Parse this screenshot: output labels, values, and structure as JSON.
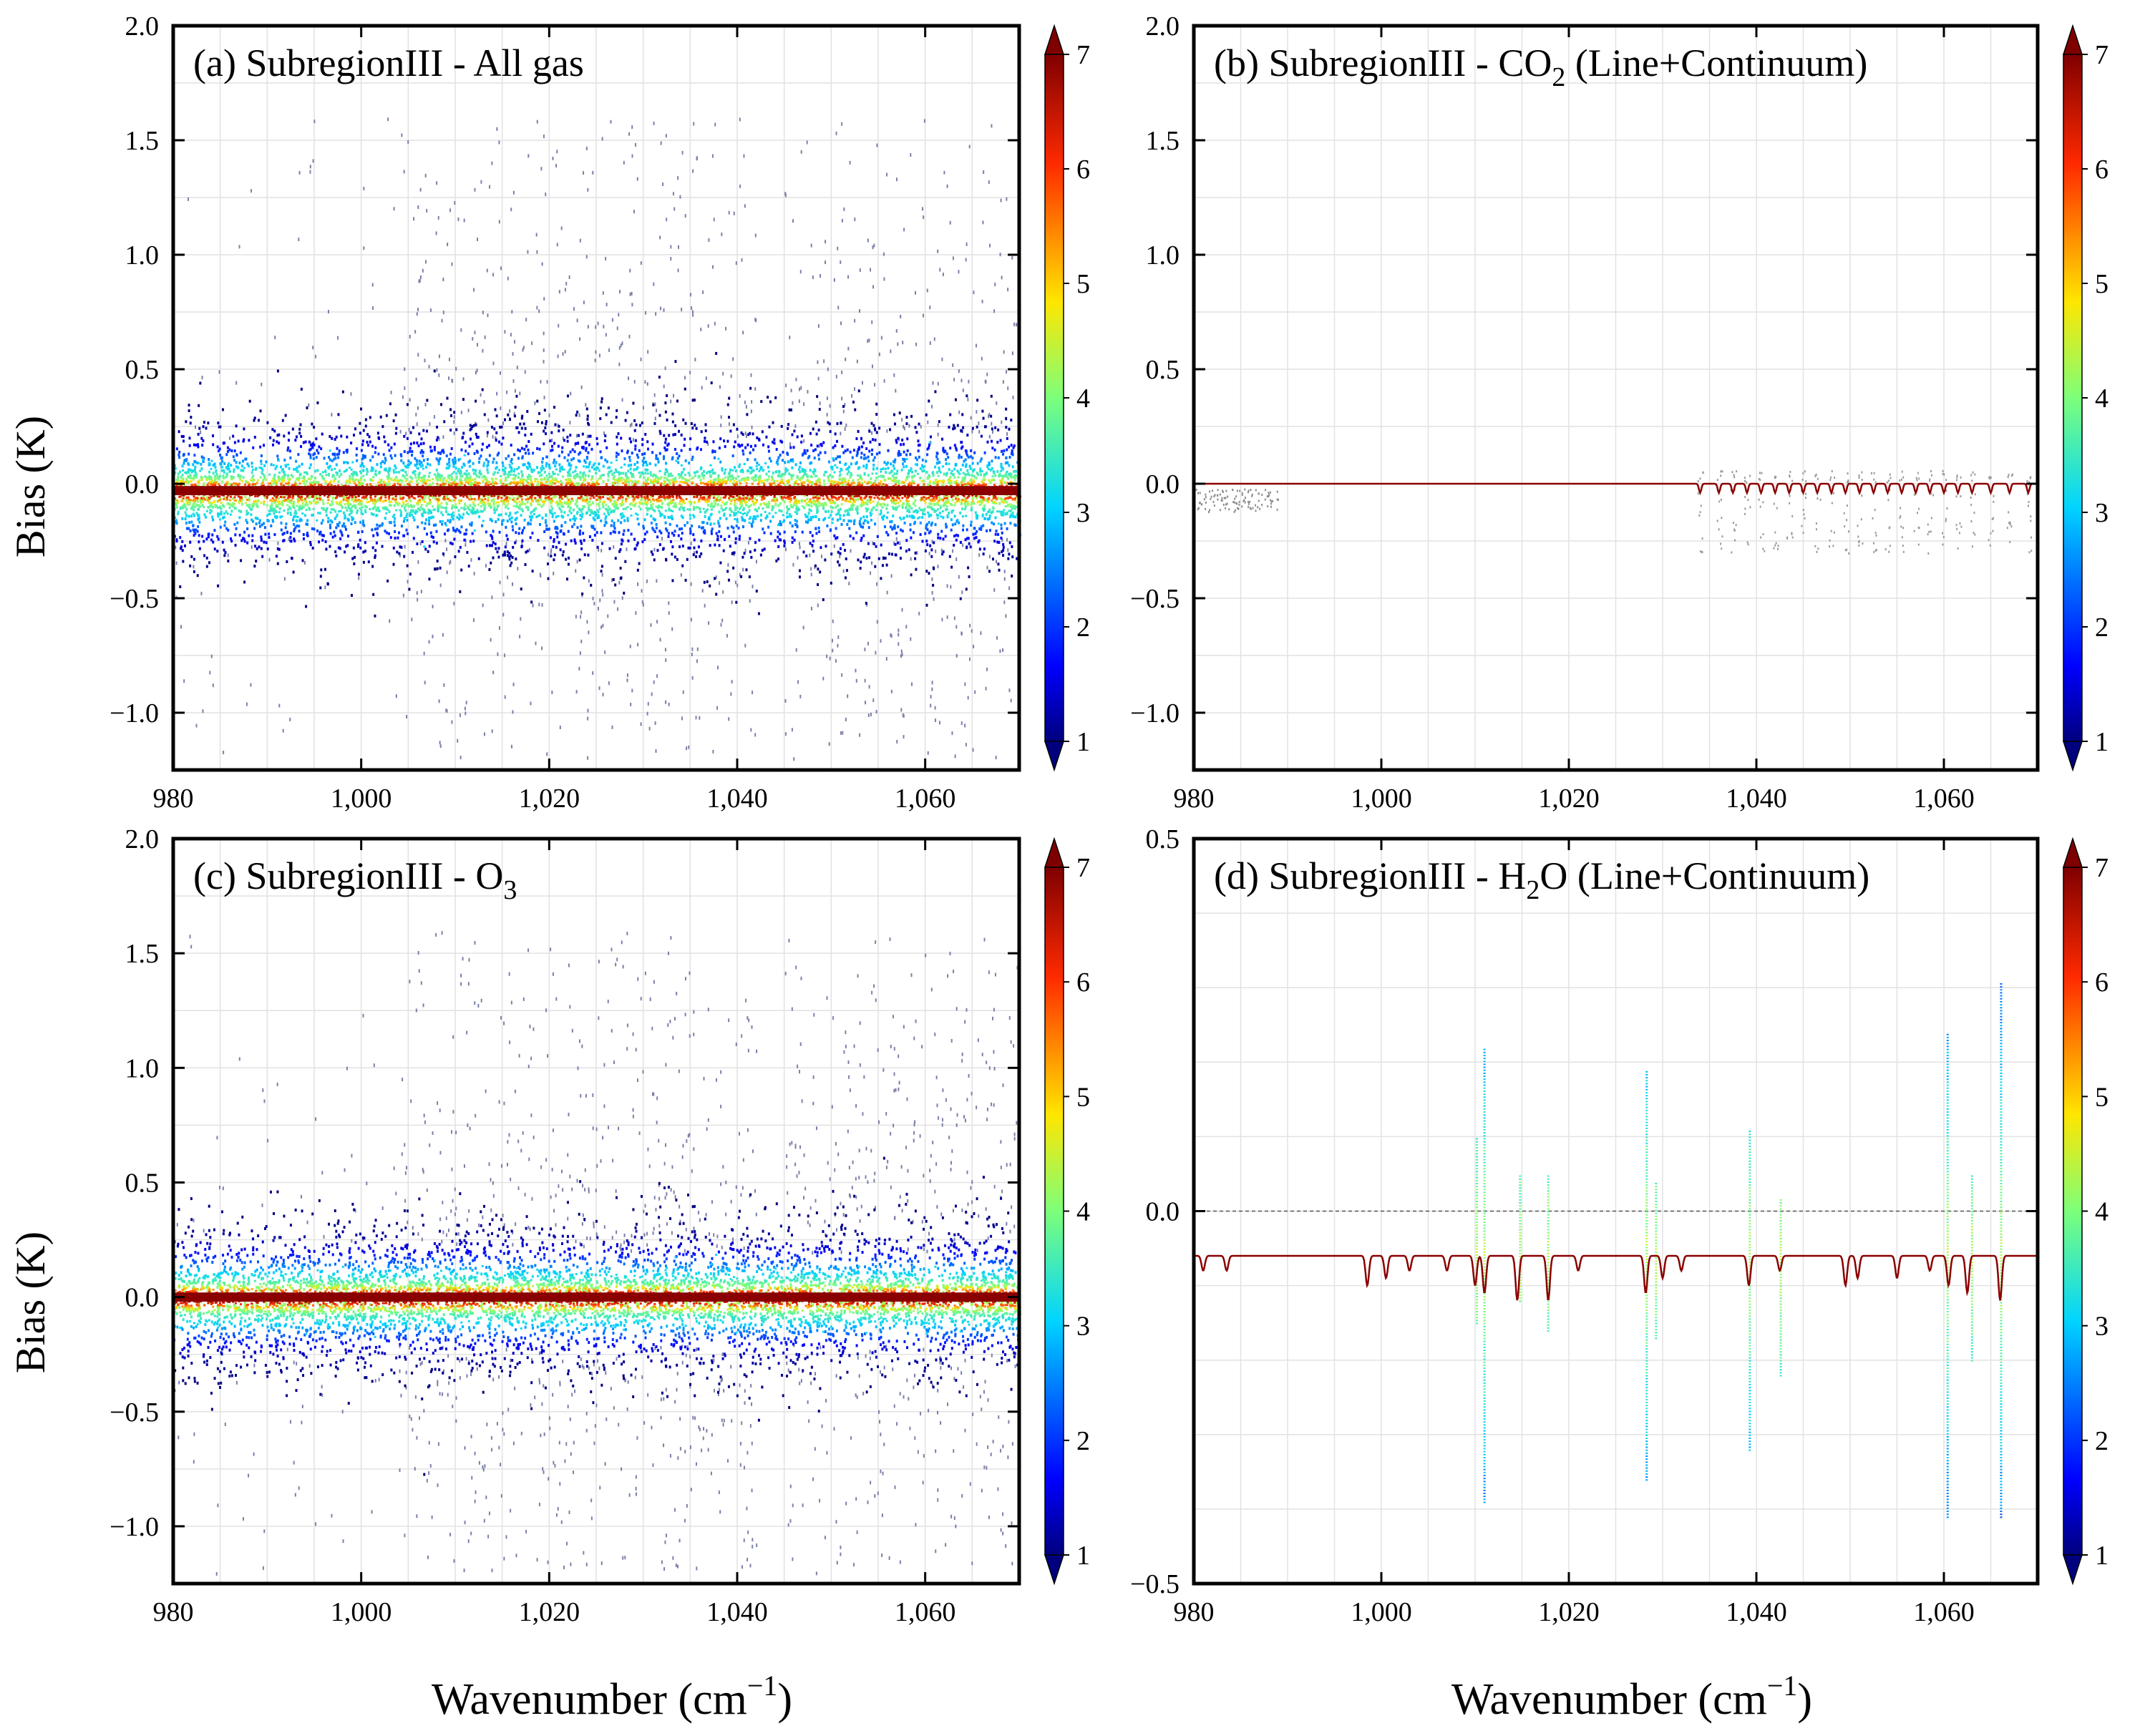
{
  "figure": {
    "x_axis_label": "Wavenumber (cm",
    "x_axis_label_sup": "−1",
    "x_axis_label_close": ")",
    "y_axis_label": "Bias (K)"
  },
  "chart_data": [
    {
      "id": "a",
      "type": "scatter",
      "title": "(a) SubregionIII - All gas",
      "title_parts": [
        {
          "t": "(a) SubregionIII - All gas"
        }
      ],
      "xlabel": "",
      "ylabel": "Bias (K)",
      "xlim": [
        980,
        1070
      ],
      "ylim": [
        -1.25,
        2.0
      ],
      "xticks": [
        980,
        1000,
        1020,
        1040,
        1060
      ],
      "xtick_labels": [
        "980",
        "1,000",
        "1,020",
        "1,040",
        "1,060"
      ],
      "yticks": [
        -1.0,
        -0.5,
        0.0,
        0.5,
        1.0,
        1.5,
        2.0
      ],
      "ytick_labels": [
        "−1.0",
        "−0.5",
        "0.0",
        "0.5",
        "1.0",
        "1.5",
        "2.0"
      ],
      "grid": true,
      "colorbar": {
        "min": 1,
        "max": 7,
        "ticks": [
          "1",
          "2",
          "3",
          "4",
          "5",
          "6",
          "7"
        ],
        "extend": "both",
        "colormap": "jet"
      },
      "pattern": "broad",
      "center_bias": -0.03,
      "core_spread": 0.05,
      "halo_spread": 0.16,
      "sparse_range": [
        -1.2,
        1.6
      ],
      "gap_x": [
        1042,
        1045
      ]
    },
    {
      "id": "b",
      "type": "scatter",
      "title": "(b) SubregionIII - CO2 (Line+Continuum)",
      "title_parts": [
        {
          "t": "(b) SubregionIII - CO"
        },
        {
          "t": "2",
          "sub": true
        },
        {
          "t": " (Line+Continuum)"
        }
      ],
      "xlabel": "",
      "ylabel": "",
      "xlim": [
        980,
        1070
      ],
      "ylim": [
        -1.25,
        2.0
      ],
      "xticks": [
        980,
        1000,
        1020,
        1040,
        1060
      ],
      "xtick_labels": [
        "980",
        "1,000",
        "1,020",
        "1,040",
        "1,060"
      ],
      "yticks": [
        -1.0,
        -0.5,
        0.0,
        0.5,
        1.0,
        1.5,
        2.0
      ],
      "ytick_labels": [
        "−1.0",
        "−0.5",
        "0.0",
        "0.5",
        "1.0",
        "1.5",
        "2.0"
      ],
      "grid": true,
      "colorbar": {
        "min": 1,
        "max": 7,
        "ticks": [
          "1",
          "2",
          "3",
          "4",
          "5",
          "6",
          "7"
        ],
        "extend": "both",
        "colormap": "jet"
      },
      "pattern": "lines",
      "baseline": 0.0,
      "line_centers": [
        1034,
        1036,
        1037.5,
        1039,
        1040.5,
        1042,
        1043.5,
        1045,
        1046.5,
        1048,
        1049.5,
        1051,
        1052.5,
        1054,
        1055.5,
        1057,
        1058.5,
        1060,
        1061.5,
        1063,
        1065,
        1067,
        1069
      ],
      "line_depth": -0.04,
      "scatter_spread": 0.3
    },
    {
      "id": "c",
      "type": "scatter",
      "title": "(c) SubregionIII - O3",
      "title_parts": [
        {
          "t": "(c) SubregionIII - O"
        },
        {
          "t": "3",
          "sub": true
        }
      ],
      "xlabel": "",
      "ylabel": "Bias (K)",
      "xlim": [
        980,
        1070
      ],
      "ylim": [
        -1.25,
        2.0
      ],
      "xticks": [
        980,
        1000,
        1020,
        1040,
        1060
      ],
      "xtick_labels": [
        "980",
        "1,000",
        "1,020",
        "1,040",
        "1,060"
      ],
      "yticks": [
        -1.0,
        -0.5,
        0.0,
        0.5,
        1.0,
        1.5,
        2.0
      ],
      "ytick_labels": [
        "−1.0",
        "−0.5",
        "0.0",
        "0.5",
        "1.0",
        "1.5",
        "2.0"
      ],
      "grid": true,
      "colorbar": {
        "min": 1,
        "max": 7,
        "ticks": [
          "1",
          "2",
          "3",
          "4",
          "5",
          "6",
          "7"
        ],
        "extend": "both",
        "colormap": "jet"
      },
      "pattern": "broad",
      "center_bias": 0.0,
      "core_spread": 0.05,
      "halo_spread": 0.16,
      "sparse_range": [
        -1.2,
        1.6
      ],
      "gap_x": [
        1042,
        1045
      ]
    },
    {
      "id": "d",
      "type": "scatter",
      "title": "(d) SubregionIII - H2O (Line+Continuum)",
      "title_parts": [
        {
          "t": "(d) SubregionIII - H"
        },
        {
          "t": "2",
          "sub": true
        },
        {
          "t": "O (Line+Continuum)"
        }
      ],
      "xlabel": "",
      "ylabel": "",
      "xlim": [
        980,
        1070
      ],
      "ylim": [
        -0.5,
        0.5
      ],
      "xticks": [
        980,
        1000,
        1020,
        1040,
        1060
      ],
      "xtick_labels": [
        "980",
        "1,000",
        "1,020",
        "1,040",
        "1,060"
      ],
      "yticks": [
        -0.5,
        0.0,
        0.5
      ],
      "ytick_labels": [
        "−0.5",
        "0.0",
        "0.5"
      ],
      "grid": true,
      "colorbar": {
        "min": 1,
        "max": 7,
        "ticks": [
          "1",
          "2",
          "3",
          "4",
          "5",
          "6",
          "7"
        ],
        "extend": "both",
        "colormap": "jet"
      },
      "pattern": "h2o",
      "baseline": -0.06,
      "dips": [
        {
          "x": 981,
          "d": -0.02
        },
        {
          "x": 983.5,
          "d": -0.02
        },
        {
          "x": 998.5,
          "d": -0.04
        },
        {
          "x": 1000.5,
          "d": -0.03
        },
        {
          "x": 1003,
          "d": -0.02
        },
        {
          "x": 1007,
          "d": -0.02
        },
        {
          "x": 1010,
          "d": -0.04
        },
        {
          "x": 1011,
          "d": -0.05
        },
        {
          "x": 1014.5,
          "d": -0.06
        },
        {
          "x": 1017.8,
          "d": -0.06
        },
        {
          "x": 1021,
          "d": -0.02
        },
        {
          "x": 1028.2,
          "d": -0.05
        },
        {
          "x": 1030,
          "d": -0.03
        },
        {
          "x": 1032,
          "d": -0.02
        },
        {
          "x": 1039.2,
          "d": -0.04
        },
        {
          "x": 1042.5,
          "d": -0.02
        },
        {
          "x": 1049.5,
          "d": -0.04
        },
        {
          "x": 1050.8,
          "d": -0.03
        },
        {
          "x": 1055,
          "d": -0.03
        },
        {
          "x": 1058.5,
          "d": -0.02
        },
        {
          "x": 1060.5,
          "d": -0.04
        },
        {
          "x": 1062.5,
          "d": -0.05
        },
        {
          "x": 1066,
          "d": -0.06
        }
      ],
      "spikes": [
        {
          "x": 1010.2,
          "hi": 0.1,
          "lo": -0.15
        },
        {
          "x": 1011,
          "hi": 0.22,
          "lo": -0.39
        },
        {
          "x": 1014.8,
          "hi": 0.05,
          "lo": -0.12
        },
        {
          "x": 1017.8,
          "hi": 0.05,
          "lo": -0.16
        },
        {
          "x": 1028.3,
          "hi": 0.19,
          "lo": -0.36
        },
        {
          "x": 1029.3,
          "hi": 0.04,
          "lo": -0.17
        },
        {
          "x": 1039.3,
          "hi": 0.11,
          "lo": -0.32
        },
        {
          "x": 1042.6,
          "hi": 0.02,
          "lo": -0.22
        },
        {
          "x": 1060.4,
          "hi": 0.24,
          "lo": -0.41
        },
        {
          "x": 1063,
          "hi": 0.05,
          "lo": -0.2
        },
        {
          "x": 1066.1,
          "hi": 0.31,
          "lo": -0.41
        }
      ],
      "zero_line": 0.0
    }
  ]
}
